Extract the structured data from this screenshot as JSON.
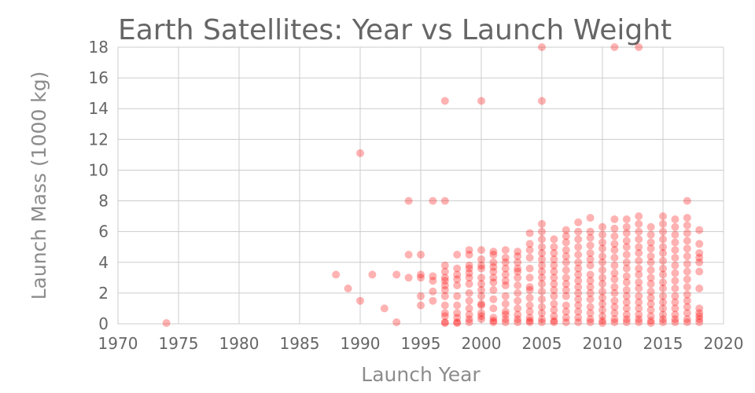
{
  "chart_data": {
    "type": "scatter",
    "title": "Earth Satellites: Year vs Launch Weight",
    "xlabel": "Launch Year",
    "ylabel": "Launch Mass (1000 kg)",
    "xlim": [
      1970,
      2020
    ],
    "ylim": [
      0,
      18
    ],
    "xticks": [
      1970,
      1975,
      1980,
      1985,
      1990,
      1995,
      2000,
      2005,
      2010,
      2015,
      2020
    ],
    "yticks": [
      0,
      2,
      4,
      6,
      8,
      10,
      12,
      14,
      16,
      18
    ],
    "grid": true,
    "legend": "none",
    "marker_color": "#ff0000",
    "marker_opacity": 0.3,
    "points": [
      [
        1974,
        0.05
      ],
      [
        1988,
        3.2
      ],
      [
        1989,
        2.3
      ],
      [
        1990,
        11.1
      ],
      [
        1990,
        1.5
      ],
      [
        1991,
        3.2
      ],
      [
        1992,
        1.0
      ],
      [
        1993,
        3.2
      ],
      [
        1993,
        0.1
      ],
      [
        1994,
        8.0
      ],
      [
        1994,
        4.5
      ],
      [
        1994,
        3.0
      ],
      [
        1995,
        4.5
      ],
      [
        1995,
        3.2
      ],
      [
        1995,
        3.0
      ],
      [
        1995,
        1.8
      ],
      [
        1995,
        1.2
      ],
      [
        1996,
        8.0
      ],
      [
        1996,
        3.1
      ],
      [
        1996,
        2.8
      ],
      [
        1996,
        2.1
      ],
      [
        1996,
        1.5
      ],
      [
        1997,
        14.5
      ],
      [
        1997,
        8.0
      ],
      [
        1997,
        3.8
      ],
      [
        1997,
        3.4
      ],
      [
        1997,
        3.0
      ],
      [
        1997,
        2.8
      ],
      [
        1997,
        2.5
      ],
      [
        1997,
        2.2
      ],
      [
        1997,
        1.8
      ],
      [
        1997,
        1.2
      ],
      [
        1997,
        0.7
      ],
      [
        1997,
        0.5
      ],
      [
        1997,
        0.1
      ],
      [
        1997,
        0.05
      ],
      [
        1998,
        4.5
      ],
      [
        1998,
        3.6
      ],
      [
        1998,
        3.2
      ],
      [
        1998,
        2.9
      ],
      [
        1998,
        2.5
      ],
      [
        1998,
        1.8
      ],
      [
        1998,
        1.2
      ],
      [
        1998,
        0.7
      ],
      [
        1998,
        0.4
      ],
      [
        1998,
        0.1
      ],
      [
        1998,
        0.05
      ],
      [
        1999,
        4.8
      ],
      [
        1999,
        4.5
      ],
      [
        1999,
        3.8
      ],
      [
        1999,
        3.6
      ],
      [
        1999,
        3.3
      ],
      [
        1999,
        3.0
      ],
      [
        1999,
        2.6
      ],
      [
        1999,
        2.0
      ],
      [
        1999,
        1.5
      ],
      [
        1999,
        1.0
      ],
      [
        1999,
        0.6
      ],
      [
        1999,
        0.3
      ],
      [
        1999,
        0.1
      ],
      [
        2000,
        14.5
      ],
      [
        2000,
        4.8
      ],
      [
        2000,
        4.2
      ],
      [
        2000,
        3.8
      ],
      [
        2000,
        3.6
      ],
      [
        2000,
        3.0
      ],
      [
        2000,
        2.6
      ],
      [
        2000,
        2.2
      ],
      [
        2000,
        1.8
      ],
      [
        2000,
        1.3
      ],
      [
        2000,
        1.2
      ],
      [
        2000,
        0.7
      ],
      [
        2000,
        0.5
      ],
      [
        2000,
        0.3
      ],
      [
        2001,
        4.7
      ],
      [
        2001,
        4.5
      ],
      [
        2001,
        4.0
      ],
      [
        2001,
        3.7
      ],
      [
        2001,
        3.4
      ],
      [
        2001,
        3.0
      ],
      [
        2001,
        2.7
      ],
      [
        2001,
        2.2
      ],
      [
        2001,
        1.6
      ],
      [
        2001,
        1.0
      ],
      [
        2001,
        0.4
      ],
      [
        2001,
        0.2
      ],
      [
        2001,
        0.1
      ],
      [
        2002,
        4.8
      ],
      [
        2002,
        4.3
      ],
      [
        2002,
        4.0
      ],
      [
        2002,
        3.6
      ],
      [
        2002,
        3.2
      ],
      [
        2002,
        2.8
      ],
      [
        2002,
        2.5
      ],
      [
        2002,
        1.8
      ],
      [
        2002,
        1.3
      ],
      [
        2002,
        0.8
      ],
      [
        2002,
        0.6
      ],
      [
        2002,
        0.3
      ],
      [
        2002,
        0.1
      ],
      [
        2003,
        4.7
      ],
      [
        2003,
        4.4
      ],
      [
        2003,
        4.0
      ],
      [
        2003,
        3.6
      ],
      [
        2003,
        3.4
      ],
      [
        2003,
        3.0
      ],
      [
        2003,
        2.5
      ],
      [
        2003,
        2.0
      ],
      [
        2003,
        1.5
      ],
      [
        2003,
        1.0
      ],
      [
        2003,
        0.6
      ],
      [
        2003,
        0.3
      ],
      [
        2003,
        0.1
      ],
      [
        2004,
        5.9
      ],
      [
        2004,
        5.2
      ],
      [
        2004,
        4.8
      ],
      [
        2004,
        4.3
      ],
      [
        2004,
        3.6
      ],
      [
        2004,
        3.0
      ],
      [
        2004,
        2.4
      ],
      [
        2004,
        2.2
      ],
      [
        2004,
        1.7
      ],
      [
        2004,
        1.2
      ],
      [
        2004,
        0.8
      ],
      [
        2004,
        0.4
      ],
      [
        2004,
        0.2
      ],
      [
        2004,
        0.1
      ],
      [
        2005,
        18.0
      ],
      [
        2005,
        14.5
      ],
      [
        2005,
        6.5
      ],
      [
        2005,
        6.0
      ],
      [
        2005,
        5.5
      ],
      [
        2005,
        5.0
      ],
      [
        2005,
        4.6
      ],
      [
        2005,
        4.2
      ],
      [
        2005,
        3.8
      ],
      [
        2005,
        3.4
      ],
      [
        2005,
        3.0
      ],
      [
        2005,
        2.6
      ],
      [
        2005,
        2.1
      ],
      [
        2005,
        1.6
      ],
      [
        2005,
        1.1
      ],
      [
        2005,
        0.7
      ],
      [
        2005,
        0.3
      ],
      [
        2005,
        0.1
      ],
      [
        2006,
        5.5
      ],
      [
        2006,
        5.0
      ],
      [
        2006,
        4.6
      ],
      [
        2006,
        4.2
      ],
      [
        2006,
        3.8
      ],
      [
        2006,
        3.4
      ],
      [
        2006,
        3.0
      ],
      [
        2006,
        2.6
      ],
      [
        2006,
        2.2
      ],
      [
        2006,
        1.8
      ],
      [
        2006,
        1.3
      ],
      [
        2006,
        0.9
      ],
      [
        2006,
        0.5
      ],
      [
        2006,
        0.2
      ],
      [
        2006,
        0.1
      ],
      [
        2007,
        6.1
      ],
      [
        2007,
        5.7
      ],
      [
        2007,
        5.3
      ],
      [
        2007,
        4.8
      ],
      [
        2007,
        4.4
      ],
      [
        2007,
        4.0
      ],
      [
        2007,
        3.5
      ],
      [
        2007,
        3.0
      ],
      [
        2007,
        2.6
      ],
      [
        2007,
        2.2
      ],
      [
        2007,
        1.8
      ],
      [
        2007,
        1.2
      ],
      [
        2007,
        0.8
      ],
      [
        2007,
        0.4
      ],
      [
        2007,
        0.1
      ],
      [
        2008,
        6.6
      ],
      [
        2008,
        6.0
      ],
      [
        2008,
        5.5
      ],
      [
        2008,
        5.0
      ],
      [
        2008,
        4.5
      ],
      [
        2008,
        4.0
      ],
      [
        2008,
        3.6
      ],
      [
        2008,
        3.2
      ],
      [
        2008,
        2.8
      ],
      [
        2008,
        2.4
      ],
      [
        2008,
        2.0
      ],
      [
        2008,
        1.6
      ],
      [
        2008,
        1.2
      ],
      [
        2008,
        0.8
      ],
      [
        2008,
        0.4
      ],
      [
        2008,
        0.1
      ],
      [
        2009,
        6.9
      ],
      [
        2009,
        6.0
      ],
      [
        2009,
        5.6
      ],
      [
        2009,
        5.1
      ],
      [
        2009,
        4.6
      ],
      [
        2009,
        4.2
      ],
      [
        2009,
        3.8
      ],
      [
        2009,
        3.2
      ],
      [
        2009,
        2.8
      ],
      [
        2009,
        2.4
      ],
      [
        2009,
        2.0
      ],
      [
        2009,
        1.6
      ],
      [
        2009,
        1.1
      ],
      [
        2009,
        0.7
      ],
      [
        2009,
        0.3
      ],
      [
        2009,
        0.1
      ],
      [
        2010,
        6.3
      ],
      [
        2010,
        5.8
      ],
      [
        2010,
        5.3
      ],
      [
        2010,
        4.9
      ],
      [
        2010,
        4.4
      ],
      [
        2010,
        4.0
      ],
      [
        2010,
        3.5
      ],
      [
        2010,
        3.0
      ],
      [
        2010,
        2.6
      ],
      [
        2010,
        2.1
      ],
      [
        2010,
        1.7
      ],
      [
        2010,
        1.3
      ],
      [
        2010,
        0.9
      ],
      [
        2010,
        0.5
      ],
      [
        2010,
        0.2
      ],
      [
        2010,
        0.05
      ],
      [
        2011,
        18.0
      ],
      [
        2011,
        6.8
      ],
      [
        2011,
        6.2
      ],
      [
        2011,
        5.7
      ],
      [
        2011,
        5.2
      ],
      [
        2011,
        4.8
      ],
      [
        2011,
        4.3
      ],
      [
        2011,
        3.8
      ],
      [
        2011,
        3.3
      ],
      [
        2011,
        2.9
      ],
      [
        2011,
        2.4
      ],
      [
        2011,
        2.0
      ],
      [
        2011,
        1.5
      ],
      [
        2011,
        1.1
      ],
      [
        2011,
        0.7
      ],
      [
        2011,
        0.3
      ],
      [
        2011,
        0.1
      ],
      [
        2012,
        6.8
      ],
      [
        2012,
        6.3
      ],
      [
        2012,
        5.9
      ],
      [
        2012,
        5.4
      ],
      [
        2012,
        5.0
      ],
      [
        2012,
        4.5
      ],
      [
        2012,
        4.0
      ],
      [
        2012,
        3.6
      ],
      [
        2012,
        3.1
      ],
      [
        2012,
        2.7
      ],
      [
        2012,
        2.2
      ],
      [
        2012,
        1.8
      ],
      [
        2012,
        1.4
      ],
      [
        2012,
        1.0
      ],
      [
        2012,
        0.6
      ],
      [
        2012,
        0.3
      ],
      [
        2012,
        0.1
      ],
      [
        2013,
        18.0
      ],
      [
        2013,
        7.0
      ],
      [
        2013,
        6.5
      ],
      [
        2013,
        6.0
      ],
      [
        2013,
        5.5
      ],
      [
        2013,
        5.0
      ],
      [
        2013,
        4.6
      ],
      [
        2013,
        4.1
      ],
      [
        2013,
        3.6
      ],
      [
        2013,
        3.2
      ],
      [
        2013,
        2.7
      ],
      [
        2013,
        2.3
      ],
      [
        2013,
        1.8
      ],
      [
        2013,
        1.4
      ],
      [
        2013,
        1.0
      ],
      [
        2013,
        0.6
      ],
      [
        2013,
        0.3
      ],
      [
        2013,
        0.1
      ],
      [
        2014,
        6.3
      ],
      [
        2014,
        5.8
      ],
      [
        2014,
        5.3
      ],
      [
        2014,
        4.9
      ],
      [
        2014,
        4.4
      ],
      [
        2014,
        4.0
      ],
      [
        2014,
        3.5
      ],
      [
        2014,
        3.0
      ],
      [
        2014,
        2.6
      ],
      [
        2014,
        2.1
      ],
      [
        2014,
        1.7
      ],
      [
        2014,
        1.3
      ],
      [
        2014,
        0.9
      ],
      [
        2014,
        0.5
      ],
      [
        2014,
        0.2
      ],
      [
        2014,
        0.05
      ],
      [
        2015,
        7.0
      ],
      [
        2015,
        6.5
      ],
      [
        2015,
        6.0
      ],
      [
        2015,
        5.5
      ],
      [
        2015,
        5.0
      ],
      [
        2015,
        4.6
      ],
      [
        2015,
        4.1
      ],
      [
        2015,
        3.6
      ],
      [
        2015,
        3.2
      ],
      [
        2015,
        2.7
      ],
      [
        2015,
        2.3
      ],
      [
        2015,
        1.8
      ],
      [
        2015,
        1.4
      ],
      [
        2015,
        1.0
      ],
      [
        2015,
        0.6
      ],
      [
        2015,
        0.3
      ],
      [
        2015,
        0.1
      ],
      [
        2016,
        6.8
      ],
      [
        2016,
        6.3
      ],
      [
        2016,
        5.8
      ],
      [
        2016,
        5.3
      ],
      [
        2016,
        4.8
      ],
      [
        2016,
        4.3
      ],
      [
        2016,
        3.8
      ],
      [
        2016,
        3.3
      ],
      [
        2016,
        2.8
      ],
      [
        2016,
        2.3
      ],
      [
        2016,
        1.8
      ],
      [
        2016,
        1.4
      ],
      [
        2016,
        1.0
      ],
      [
        2016,
        0.6
      ],
      [
        2016,
        0.3
      ],
      [
        2016,
        0.1
      ],
      [
        2017,
        8.0
      ],
      [
        2017,
        6.9
      ],
      [
        2017,
        6.4
      ],
      [
        2017,
        5.9
      ],
      [
        2017,
        5.4
      ],
      [
        2017,
        4.9
      ],
      [
        2017,
        4.4
      ],
      [
        2017,
        3.9
      ],
      [
        2017,
        3.4
      ],
      [
        2017,
        2.9
      ],
      [
        2017,
        2.4
      ],
      [
        2017,
        1.9
      ],
      [
        2017,
        1.5
      ],
      [
        2017,
        1.1
      ],
      [
        2017,
        0.7
      ],
      [
        2017,
        0.3
      ],
      [
        2017,
        0.1
      ],
      [
        2018,
        6.1
      ],
      [
        2018,
        5.2
      ],
      [
        2018,
        4.6
      ],
      [
        2018,
        4.3
      ],
      [
        2018,
        4.0
      ],
      [
        2018,
        3.4
      ],
      [
        2018,
        2.3
      ],
      [
        2018,
        1.0
      ],
      [
        2018,
        0.7
      ],
      [
        2018,
        0.5
      ],
      [
        2018,
        0.3
      ],
      [
        2018,
        0.1
      ]
    ]
  }
}
